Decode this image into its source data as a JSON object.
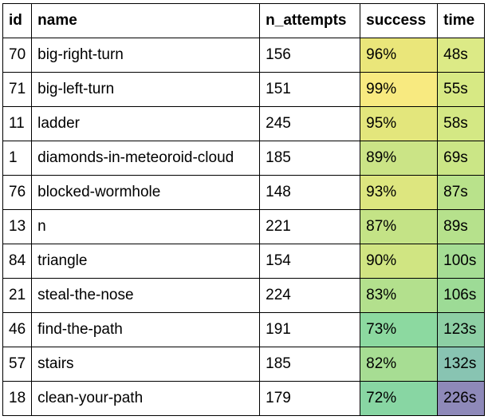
{
  "table": {
    "headers": [
      "id",
      "name",
      "n_attempts",
      "success",
      "time"
    ],
    "rows": [
      {
        "id": "70",
        "name": "big-right-turn",
        "n_attempts": "156",
        "success": "96%",
        "time": "48s",
        "success_color": "#eae67a",
        "time_color": "#dcea86"
      },
      {
        "id": "71",
        "name": "big-left-turn",
        "n_attempts": "151",
        "success": "99%",
        "time": "55s",
        "success_color": "#f8ea80",
        "time_color": "#d7e984"
      },
      {
        "id": "11",
        "name": "ladder",
        "n_attempts": "245",
        "success": "95%",
        "time": "58s",
        "success_color": "#e3e67c",
        "time_color": "#d4e884"
      },
      {
        "id": "1",
        "name": "diamonds-in-meteoroid-cloud",
        "n_attempts": "185",
        "success": "89%",
        "time": "69s",
        "success_color": "#cbe486",
        "time_color": "#cbe686"
      },
      {
        "id": "76",
        "name": "blocked-wormhole",
        "n_attempts": "148",
        "success": "93%",
        "time": "87s",
        "success_color": "#dde67f",
        "time_color": "#b9e28b"
      },
      {
        "id": "13",
        "name": "n",
        "n_attempts": "221",
        "success": "87%",
        "time": "89s",
        "success_color": "#c4e386",
        "time_color": "#b6e18c"
      },
      {
        "id": "84",
        "name": "triangle",
        "n_attempts": "154",
        "success": "90%",
        "time": "100s",
        "success_color": "#d0e582",
        "time_color": "#a5dd94"
      },
      {
        "id": "21",
        "name": "steal-the-nose",
        "n_attempts": "224",
        "success": "83%",
        "time": "106s",
        "success_color": "#b3e08d",
        "time_color": "#9ddb96"
      },
      {
        "id": "46",
        "name": "find-the-path",
        "n_attempts": "191",
        "success": "73%",
        "time": "123s",
        "success_color": "#8cd9a0",
        "time_color": "#8dcfa4"
      },
      {
        "id": "57",
        "name": "stairs",
        "n_attempts": "185",
        "success": "82%",
        "time": "132s",
        "success_color": "#a7dd93",
        "time_color": "#88c4b2"
      },
      {
        "id": "18",
        "name": "clean-your-path",
        "n_attempts": "179",
        "success": "72%",
        "time": "226s",
        "success_color": "#88d6a3",
        "time_color": "#8e89b9"
      }
    ]
  }
}
